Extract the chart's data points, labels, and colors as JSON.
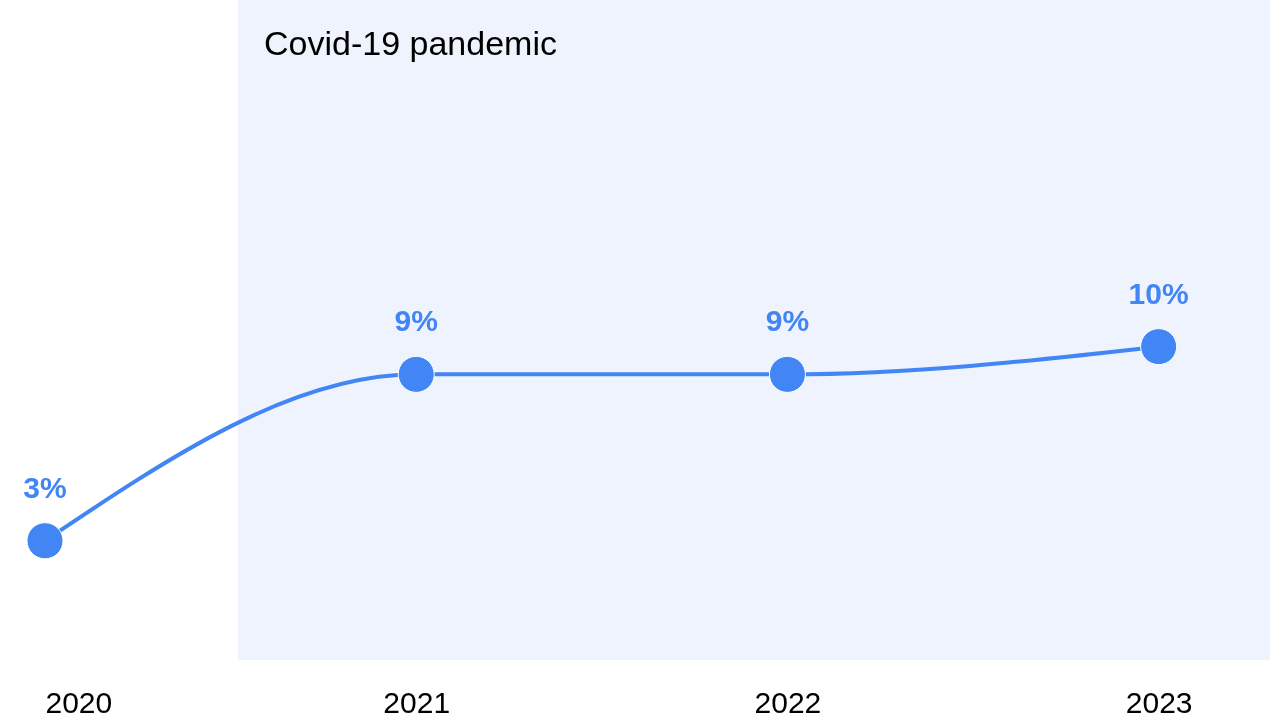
{
  "chart_data": {
    "type": "line",
    "x": [
      2020,
      2021,
      2022,
      2023
    ],
    "xlim": [
      2020,
      2023.3
    ],
    "xticks": [
      2020,
      2021,
      2022,
      2023
    ],
    "series": [
      {
        "color": "#4285f4",
        "values": [
          3,
          9,
          9,
          10
        ],
        "value_labels": [
          "3%",
          "9%",
          "9%",
          "10%"
        ]
      }
    ],
    "bands": [
      {
        "axis": "x",
        "from": 2020.52,
        "to": 2023.3,
        "label": "Covid-19 pandemic",
        "color": "#eef3fd"
      }
    ],
    "marker": "circle",
    "grid": false,
    "tick_labels": "x"
  }
}
